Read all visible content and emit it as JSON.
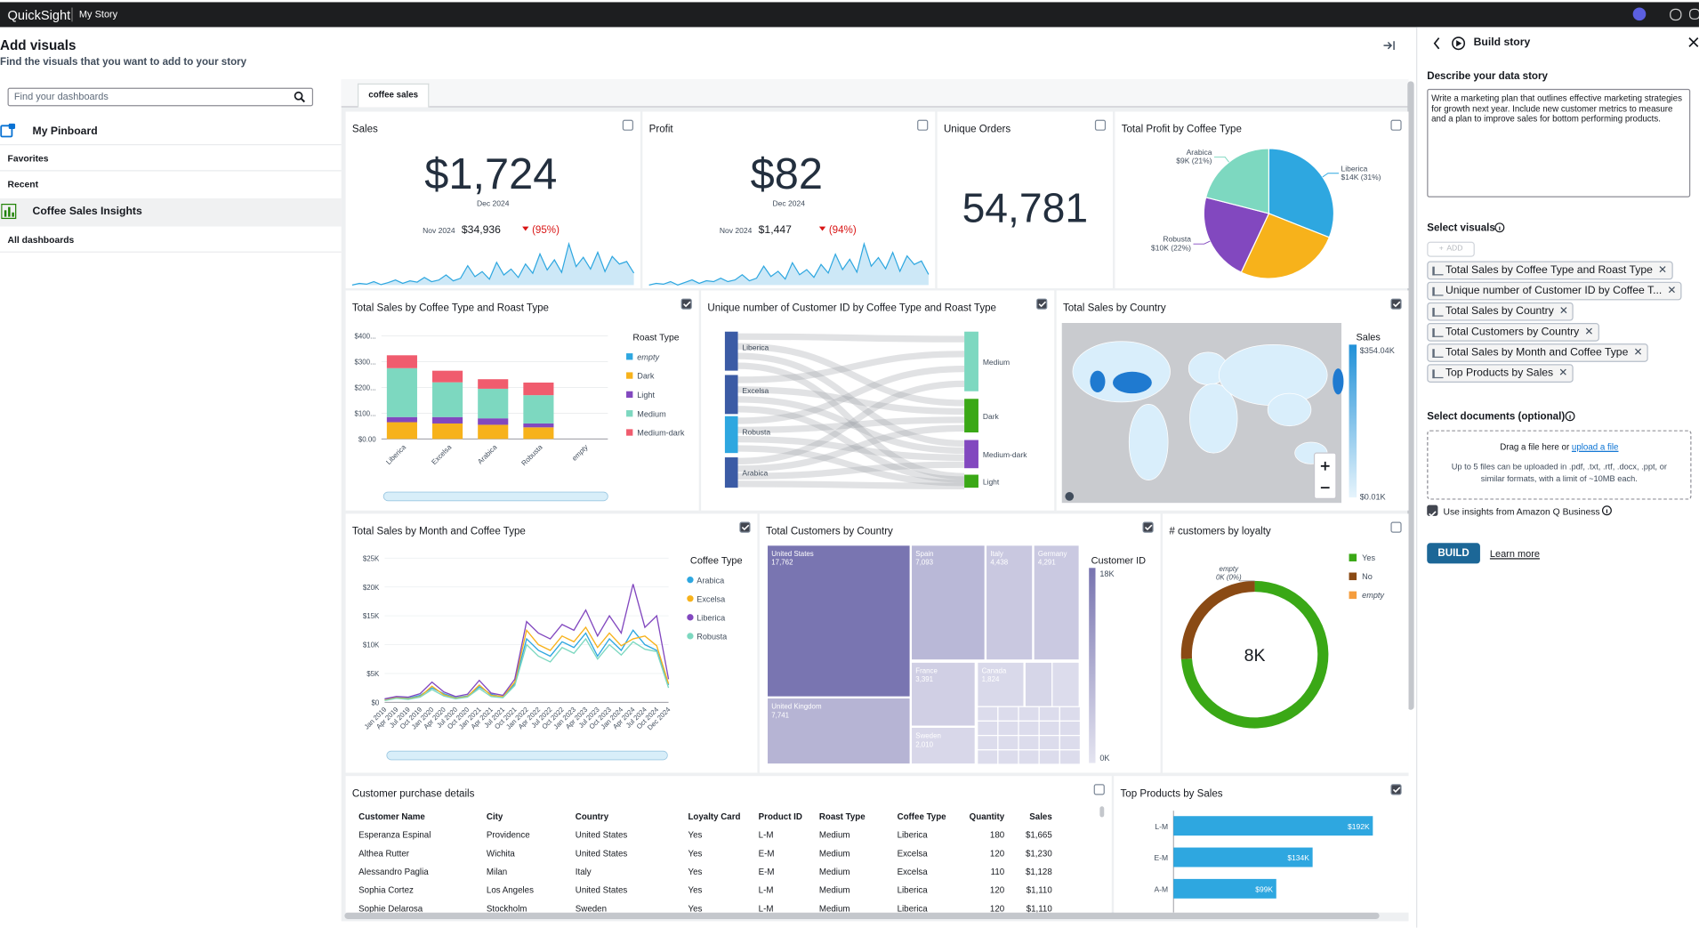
{
  "topbar": {
    "brand": "QuickSight",
    "page": "My Story"
  },
  "left_panel": {
    "title": "Add visuals",
    "subtitle": "Find the visuals that you want to add to your story",
    "search_placeholder": "Find your dashboards",
    "pinboard": "My Pinboard",
    "favorites": "Favorites",
    "recent": "Recent",
    "recent_item": "Coffee Sales Insights",
    "all_dashboards": "All dashboards"
  },
  "tab": "coffee sales",
  "visuals": {
    "sales": {
      "title": "Sales",
      "value": "$1,724",
      "period": "Dec 2024",
      "compare_period": "Nov 2024",
      "compare_value": "$34,936",
      "change": "(95%)",
      "spark": [
        300,
        500,
        400,
        700,
        350,
        600,
        900,
        500,
        800,
        650,
        1200,
        700,
        900,
        1500,
        800,
        1100,
        2600,
        1300,
        1900,
        1000,
        3000,
        1500,
        2200,
        1200,
        2800,
        1700,
        4000,
        2100,
        3300,
        1800,
        5200,
        2500,
        3600,
        2200,
        4200,
        1900,
        3700,
        2800,
        3100,
        1724
      ]
    },
    "profit": {
      "title": "Profit",
      "value": "$82",
      "period": "Dec 2024",
      "compare_period": "Nov 2024",
      "compare_value": "$1,447",
      "change": "(94%)",
      "spark": [
        20,
        30,
        25,
        40,
        20,
        35,
        50,
        30,
        45,
        40,
        60,
        40,
        50,
        80,
        45,
        60,
        130,
        70,
        100,
        55,
        150,
        80,
        110,
        65,
        140,
        90,
        200,
        110,
        170,
        95,
        260,
        130,
        180,
        115,
        210,
        100,
        190,
        140,
        160,
        82
      ]
    },
    "orders": {
      "title": "Unique Orders",
      "value": "54,781"
    },
    "pie": {
      "type": "pie",
      "title": "Total Profit by Coffee Type",
      "categories": [
        "Liberica",
        null,
        "Robusta",
        "Arabica"
      ],
      "values": [
        31,
        26,
        22,
        21
      ],
      "value_labels": [
        "$14K (31%)",
        null,
        "$10K (22%)",
        "$9K (21%)"
      ],
      "colors": [
        "#2ea7e0",
        "#f7b21b",
        "#8248bf",
        "#7dd8c0"
      ]
    },
    "stacked": {
      "type": "stacked-bar",
      "title": "Total Sales by Coffee Type and Roast Type",
      "legend_title": "Roast Type",
      "categories": [
        "Liberica",
        "Excelsa",
        "Arabica",
        "Robusta",
        "empty"
      ],
      "series": [
        {
          "name": "empty",
          "color": "#2ea7e0",
          "values": [
            0,
            0,
            0,
            0,
            0
          ]
        },
        {
          "name": "Dark",
          "color": "#f7b21b",
          "values": [
            65,
            60,
            55,
            45,
            0
          ]
        },
        {
          "name": "Light",
          "color": "#8248bf",
          "values": [
            20,
            25,
            25,
            15,
            0
          ]
        },
        {
          "name": "Medium",
          "color": "#7dd8c0",
          "values": [
            190,
            135,
            115,
            110,
            0
          ]
        },
        {
          "name": "Medium-dark",
          "color": "#f05c6e",
          "values": [
            50,
            45,
            37,
            49,
            0
          ]
        }
      ],
      "ylim": [
        0,
        400
      ],
      "yticks": [
        {
          "value": 0,
          "label": "$0.00"
        },
        {
          "value": 100,
          "label": "$100..."
        },
        {
          "value": 200,
          "label": "$200..."
        },
        {
          "value": 300,
          "label": "$300..."
        },
        {
          "value": 400,
          "label": "$400..."
        }
      ]
    },
    "sankey": {
      "type": "sankey",
      "title": "Unique number of Customer ID by Coffee Type and Roast Type",
      "left_nodes": [
        "Liberica",
        "Excelsa",
        "Robusta",
        "Arabica"
      ],
      "right_nodes": [
        "Medium",
        "Dark",
        "Medium-dark",
        "Light"
      ]
    },
    "map": {
      "type": "map",
      "title": "Total Sales by Country",
      "legend_title": "Sales",
      "legend_max": {
        "value": 354040,
        "label": "$354.04K"
      },
      "legend_min": {
        "value": 10,
        "label": "$0.01K"
      }
    },
    "line": {
      "type": "line",
      "title": "Total Sales by Month and Coffee Type",
      "legend_title": "Coffee Type",
      "categories": [
        "Jan 2019",
        "Apr 2019",
        "Jul 2019",
        "Oct 2019",
        "Jan 2020",
        "Apr 2020",
        "Jul 2020",
        "Oct 2020",
        "Jan 2021",
        "Apr 2021",
        "Jul 2021",
        "Oct 2021",
        "Jan 2022",
        "Apr 2022",
        "Jul 2022",
        "Oct 2022",
        "Jan 2023",
        "Apr 2023",
        "Jul 2023",
        "Oct 2023",
        "Jan 2024",
        "Apr 2024",
        "Jul 2024",
        "Oct 2024",
        "Dec 2024"
      ],
      "series": [
        {
          "name": "Arabica",
          "color": "#2ea7e0",
          "values": [
            500,
            900,
            700,
            1200,
            2500,
            1500,
            800,
            1100,
            2700,
            1400,
            900,
            3200,
            11000,
            9000,
            8000,
            10500,
            9500,
            12000,
            8000,
            11000,
            9000,
            12500,
            10000,
            9000,
            3000
          ]
        },
        {
          "name": "Excelsa",
          "color": "#f7b21b",
          "values": [
            400,
            800,
            600,
            1000,
            2800,
            1300,
            700,
            1000,
            3000,
            1200,
            1000,
            3500,
            12500,
            10000,
            9000,
            11500,
            10500,
            13000,
            9500,
            12000,
            9800,
            11000,
            11500,
            9800,
            3200
          ]
        },
        {
          "name": "Liberica",
          "color": "#8248bf",
          "values": [
            600,
            1000,
            900,
            1500,
            3500,
            1800,
            1000,
            1400,
            3800,
            1600,
            1200,
            4000,
            14000,
            12000,
            11000,
            13500,
            12500,
            16000,
            11500,
            15000,
            12000,
            20500,
            13000,
            15000,
            4000
          ]
        },
        {
          "name": "Robusta",
          "color": "#7dd8c0",
          "values": [
            300,
            700,
            500,
            900,
            2200,
            1100,
            600,
            900,
            2400,
            1000,
            800,
            2900,
            10000,
            8000,
            7000,
            9500,
            8500,
            11000,
            7500,
            10000,
            8200,
            10500,
            9200,
            8800,
            2500
          ]
        }
      ],
      "ylim": [
        0,
        25000
      ],
      "yticks": [
        {
          "value": 0,
          "label": "$0"
        },
        {
          "value": 5000,
          "label": "$5K"
        },
        {
          "value": 10000,
          "label": "$10K"
        },
        {
          "value": 15000,
          "label": "$15K"
        },
        {
          "value": 20000,
          "label": "$20K"
        },
        {
          "value": 25000,
          "label": "$25K"
        }
      ]
    },
    "treemap": {
      "type": "treemap",
      "title": "Total Customers by Country",
      "legend_title": "Customer ID",
      "legend_max": {
        "value": 18000,
        "label": "18K"
      },
      "legend_min": {
        "value": 0,
        "label": "0K"
      },
      "categories": [
        "United States",
        "Spain",
        "Italy",
        "Germany",
        "United Kingdom",
        "France",
        "Canada",
        "Sweden"
      ],
      "values": [
        17762,
        7093,
        4438,
        4291,
        7741,
        3391,
        1824,
        2010
      ],
      "value_labels": [
        "17,762",
        "7,093",
        "4,438",
        "4,291",
        "7,741",
        "3,391",
        "1,824",
        "2,010"
      ]
    },
    "donut": {
      "type": "donut",
      "title": "# customers by loyalty",
      "categories": [
        "Yes",
        "No",
        "empty"
      ],
      "values": [
        74,
        26,
        0
      ],
      "value_labels": [
        null,
        null,
        "0K (0%)"
      ],
      "colors": [
        "#3aa816",
        "#8a4a14",
        "#f59d3d"
      ],
      "center_label": "8K"
    },
    "table": {
      "title": "Customer purchase details",
      "columns": [
        "Customer Name",
        "City",
        "Country",
        "Loyalty Card",
        "Product ID",
        "Roast Type",
        "Coffee Type",
        "Quantity",
        "Sales"
      ],
      "rows": [
        [
          "Esperanza Espinal",
          "Providence",
          "United States",
          "Yes",
          "L-M",
          "Medium",
          "Liberica",
          180,
          "$1,665"
        ],
        [
          "Althea Rutter",
          "Wichita",
          "United States",
          "Yes",
          "E-M",
          "Medium",
          "Excelsa",
          120,
          "$1,230"
        ],
        [
          "Alessandro Paglia",
          "Milan",
          "Italy",
          "Yes",
          "E-M",
          "Medium",
          "Excelsa",
          110,
          "$1,128"
        ],
        [
          "Sophia Cortez",
          "Los Angeles",
          "United States",
          "Yes",
          "L-M",
          "Medium",
          "Liberica",
          120,
          "$1,110"
        ],
        [
          "Sophie Delarosa",
          "Stockholm",
          "Sweden",
          "Yes",
          "L-M",
          "Medium",
          "Liberica",
          120,
          "$1,110"
        ]
      ]
    },
    "top": {
      "type": "hbar",
      "title": "Top Products by Sales",
      "categories": [
        "L-M",
        "E-M",
        "A-M"
      ],
      "values": [
        192000,
        134000,
        99000
      ],
      "value_labels": [
        "$192K",
        "$134K",
        "$99K"
      ],
      "color": "#2ea7e0"
    }
  },
  "story": {
    "title": "Build story",
    "describe_label": "Describe your data story",
    "prompt": "Write a marketing plan that outlines effective marketing strategies for growth next year. Include new customer metrics to measure and a plan to improve sales for bottom performing products.",
    "select_visuals": "Select visuals",
    "add": "ADD",
    "visuals": [
      "Total Sales by Coffee Type and Roast Type",
      "Unique number of Customer ID by Coffee T...",
      "Total Sales by Country",
      "Total Customers by Country",
      "Total Sales by Month and Coffee Type",
      "Top Products by Sales"
    ],
    "select_docs": "Select documents (optional)",
    "drop_text": "Drag a file here or",
    "upload": "upload a file",
    "limits": "Up to 5 files can be uploaded in .pdf, .txt, .rtf, .docx, .ppt, or similar formats, with a limit of ~10MB each.",
    "q_business": "Use insights from Amazon Q Business",
    "build": "BUILD",
    "learn_more": "Learn more"
  }
}
